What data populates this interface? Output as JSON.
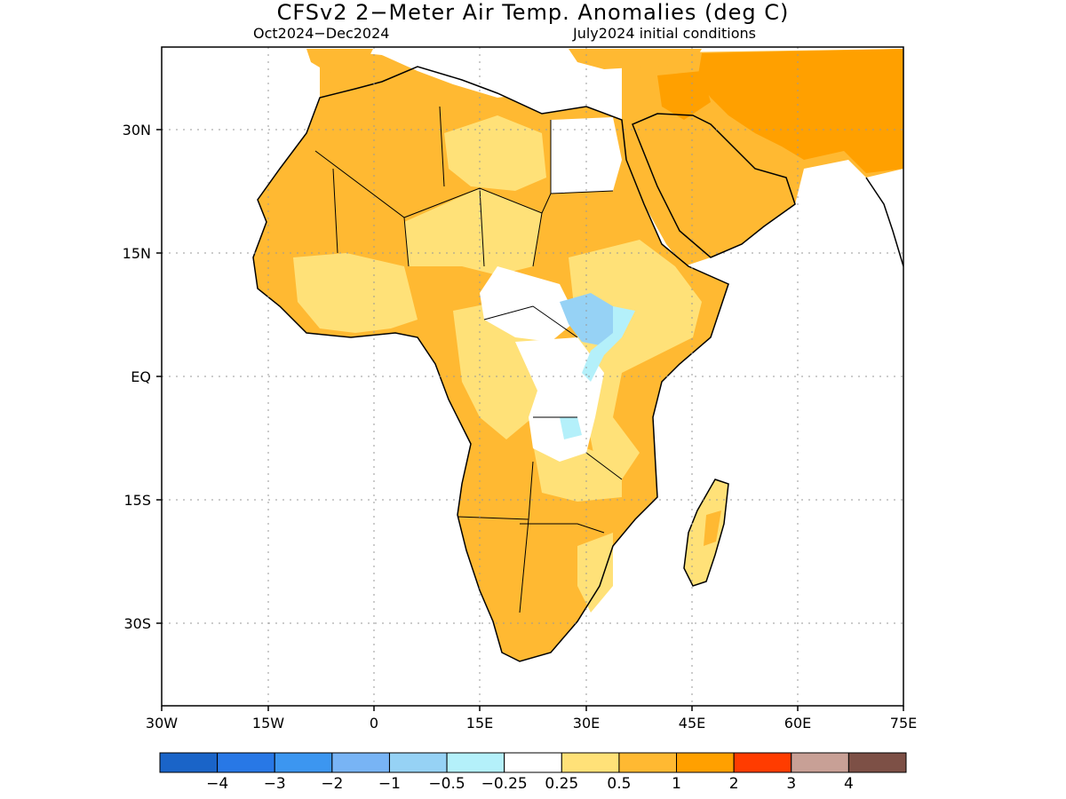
{
  "title": "CFSv2 2−Meter Air Temp. Anomalies (deg C)",
  "subtitle_left": "Oct2024−Dec2024",
  "subtitle_right": "July2024 initial conditions",
  "lat_labels": [
    "30N",
    "15N",
    "EQ",
    "15S",
    "30S"
  ],
  "lon_labels": [
    "30W",
    "15W",
    "0",
    "15E",
    "30E",
    "45E",
    "60E",
    "75E"
  ],
  "colorbar": {
    "colors": [
      "#1a64c8",
      "#2878e6",
      "#3c96f0",
      "#78b4f5",
      "#96d2f5",
      "#b4f0fa",
      "#ffffff",
      "#ffe178",
      "#ffb932",
      "#ffa000",
      "#ff3c00",
      "#c8a096",
      "#7d5046"
    ],
    "labels": [
      "−4",
      "−3",
      "−2",
      "−1",
      "−0.5",
      "−0.25",
      "0.25",
      "0.5",
      "1",
      "2",
      "3",
      "4"
    ]
  },
  "legend_colors": {
    "land_outline": "#000000",
    "anom_0_25_0_5": "#ffe178",
    "anom_0_5_1": "#ffb932",
    "anom_1_2": "#ffa000",
    "anom_neg_0_5_neg_0_25": "#b4f0fa",
    "anom_neg_1_neg_0_5": "#96d2f5"
  }
}
